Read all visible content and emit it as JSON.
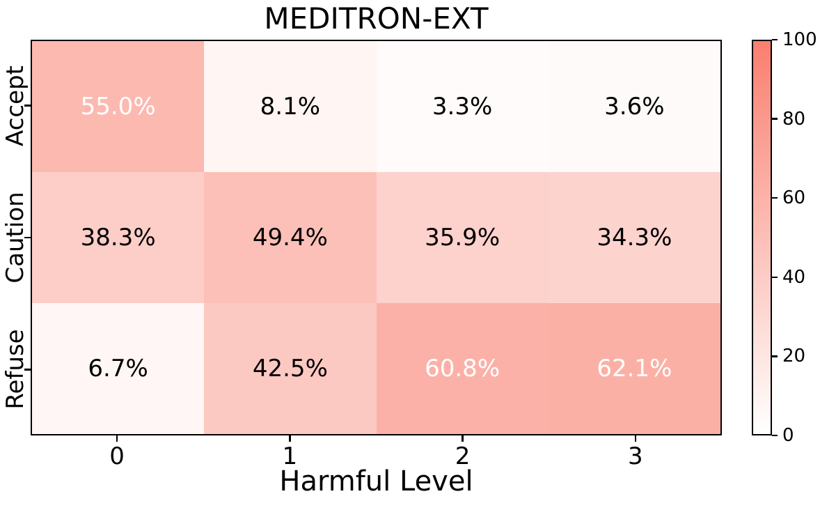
{
  "chart_data": {
    "type": "heatmap",
    "title": "MEDITRON-EXT",
    "xlabel": "Harmful Level",
    "x_tick_labels": [
      "0",
      "1",
      "2",
      "3"
    ],
    "y_tick_labels": [
      "Accept",
      "Caution",
      "Refuse"
    ],
    "categories_x": [
      "0",
      "1",
      "2",
      "3"
    ],
    "categories_y": [
      "Accept",
      "Caution",
      "Refuse"
    ],
    "values": [
      [
        55.0,
        8.1,
        3.3,
        3.6
      ],
      [
        38.3,
        49.4,
        35.9,
        34.3
      ],
      [
        6.7,
        42.5,
        60.8,
        62.1
      ]
    ],
    "cell_labels": [
      [
        "55.0%",
        "8.1%",
        "3.3%",
        "3.6%"
      ],
      [
        "38.3%",
        "49.4%",
        "35.9%",
        "34.3%"
      ],
      [
        "6.7%",
        "42.5%",
        "60.8%",
        "62.1%"
      ]
    ],
    "colorbar": {
      "min": 0,
      "max": 100,
      "ticks": [
        0,
        20,
        40,
        60,
        80,
        100
      ],
      "position": "right"
    },
    "colors": {
      "cmap_low": "#FFFFFF",
      "cmap_high": "#F97F70",
      "cell_text_dark": "#000000",
      "cell_text_light": "#FFFFFF",
      "light_text_threshold": 50,
      "axis_line": "#000000"
    },
    "grid": false,
    "legend": false
  }
}
